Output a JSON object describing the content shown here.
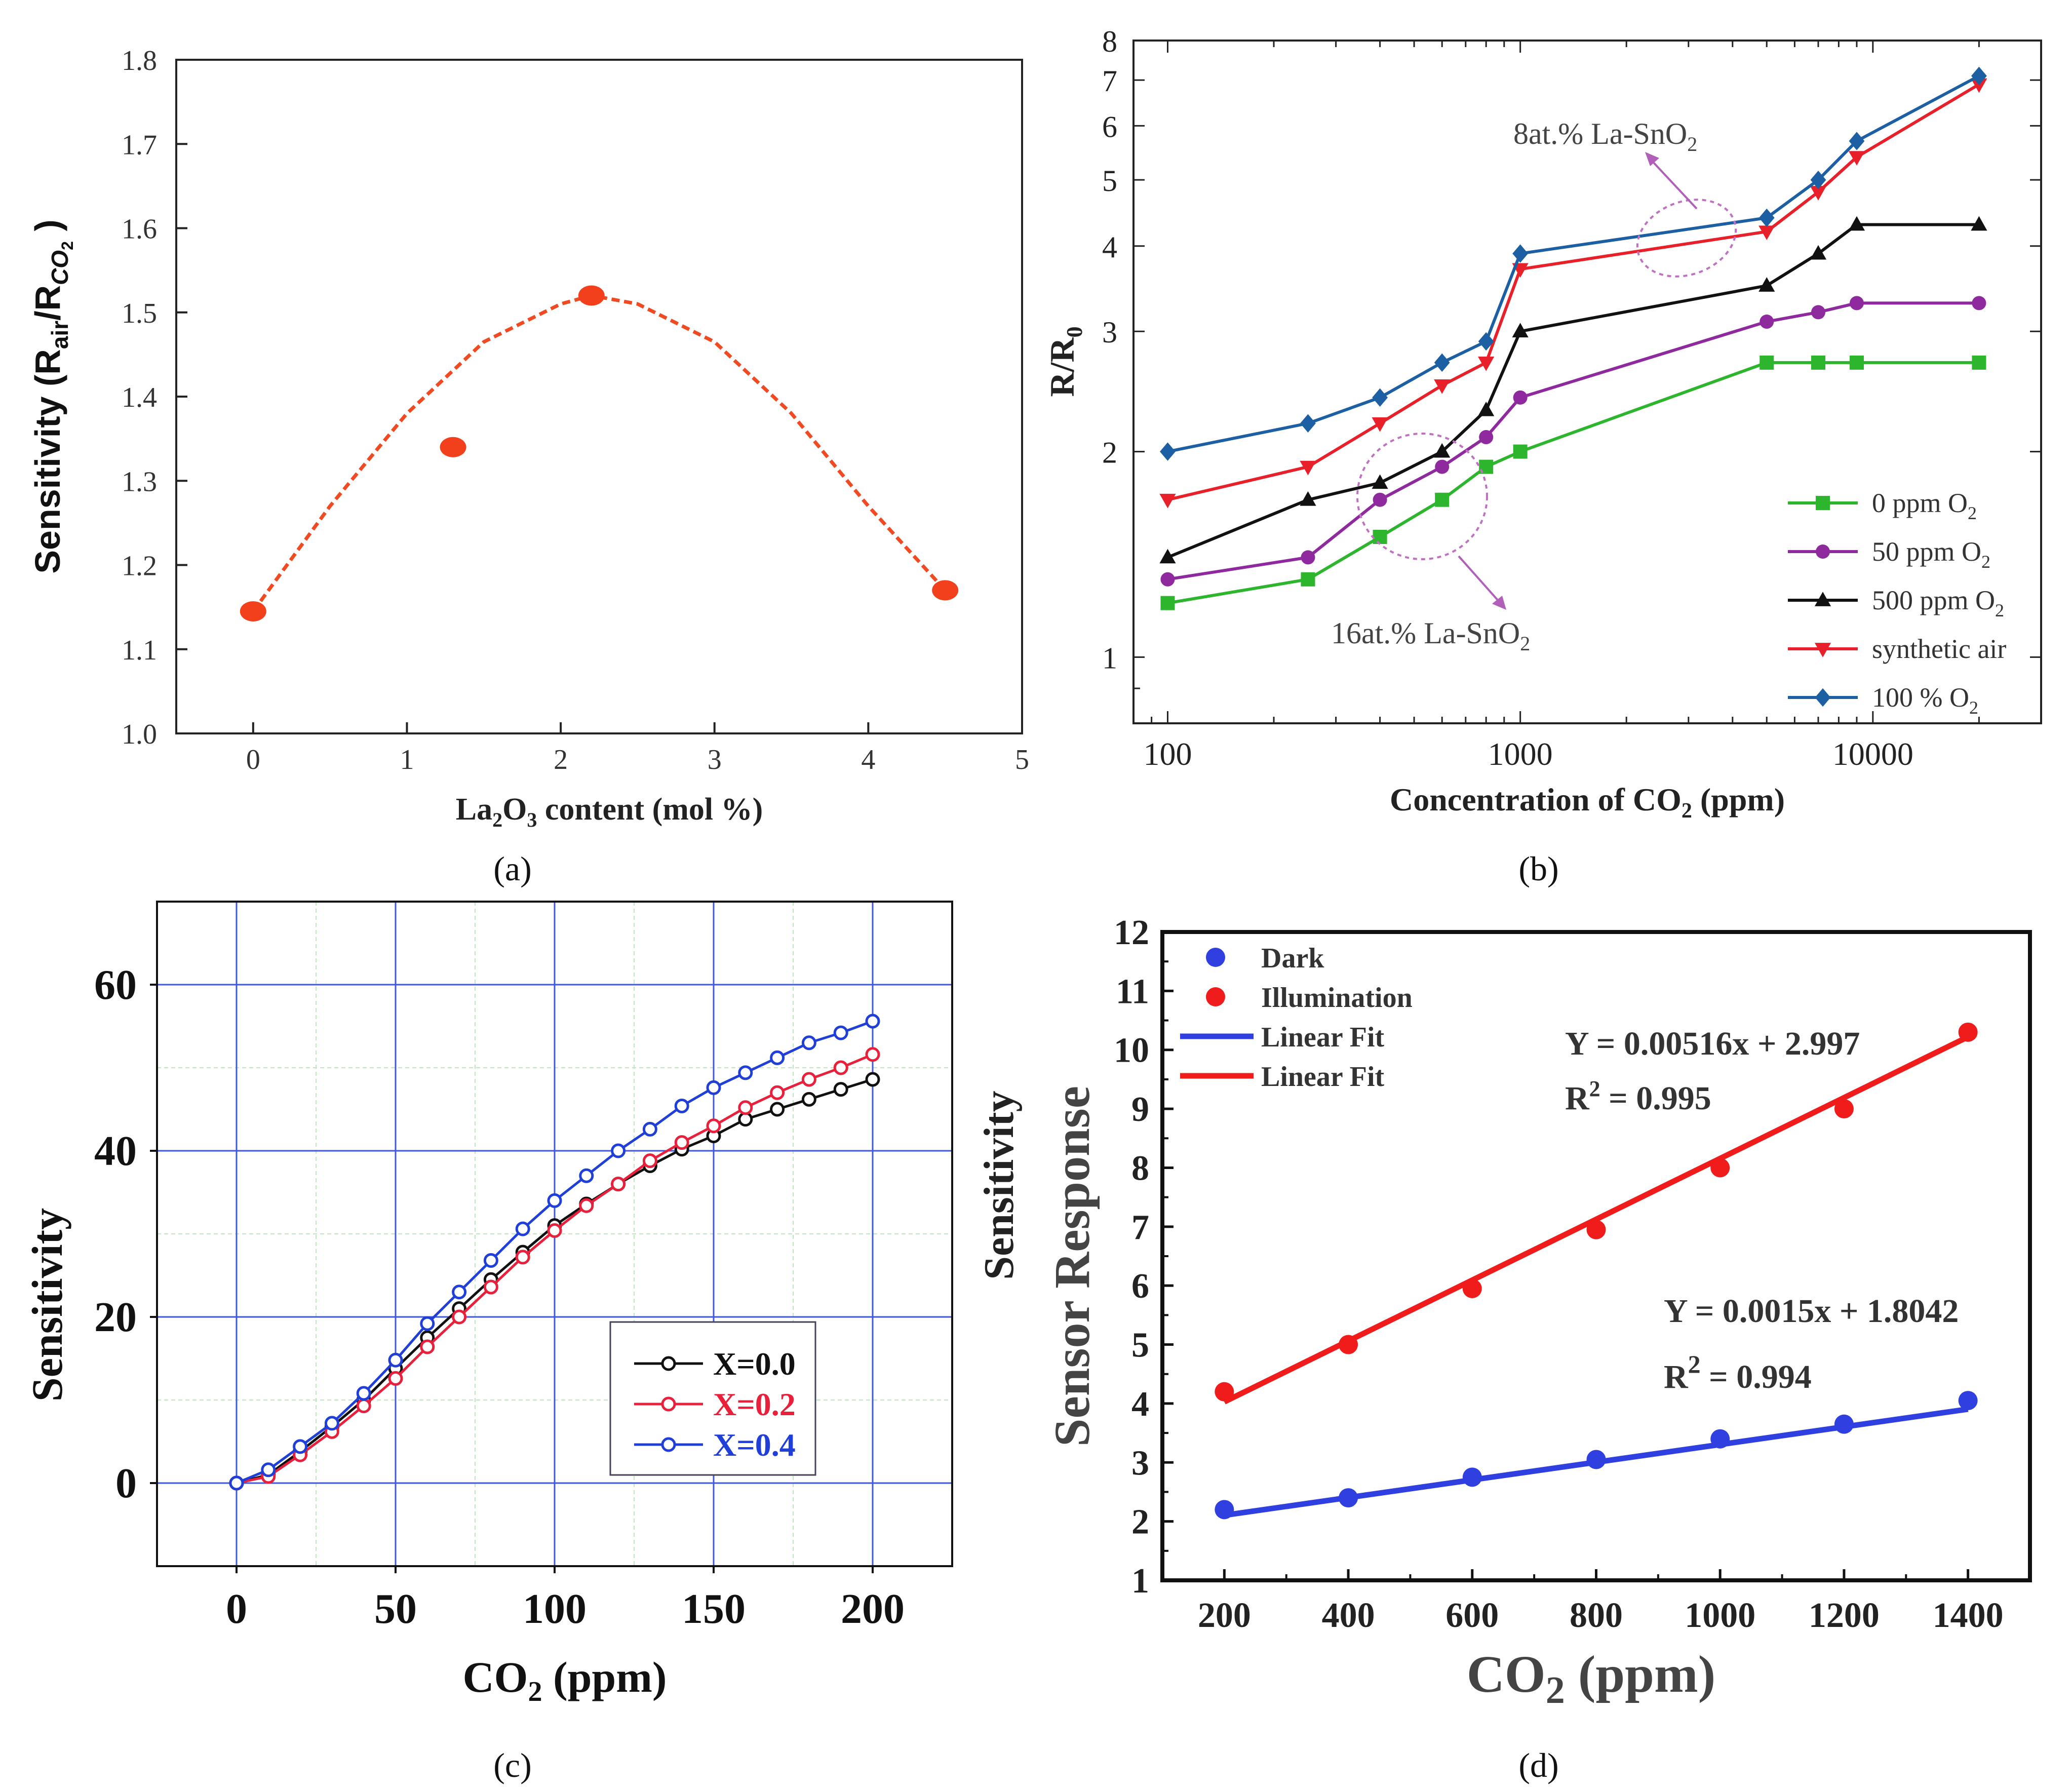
{
  "captions": {
    "a": "(a)",
    "b": "(b)",
    "c": "(c)",
    "d": "(d)"
  },
  "chart_data": [
    {
      "panel": "a",
      "type": "scatter",
      "xlabel": "La2O3 content (mol %)",
      "ylabel": "Sensitivity (Rair/RCO2)",
      "xlim": [
        -0.5,
        5
      ],
      "ylim": [
        1.0,
        1.8
      ],
      "xticks": [
        0,
        1,
        2,
        3,
        4,
        5
      ],
      "yticks": [
        1.0,
        1.1,
        1.2,
        1.3,
        1.4,
        1.5,
        1.6,
        1.7,
        1.8
      ],
      "xtick_labels": [
        "0",
        "1",
        "2",
        "3",
        "4",
        "5"
      ],
      "ytick_labels": [
        "1.0",
        "1.1",
        "1.2",
        "1.3",
        "1.4",
        "1.5",
        "1.6",
        "1.7",
        "1.8"
      ],
      "points": [
        {
          "x": 0,
          "y": 1.145
        },
        {
          "x": 1.3,
          "y": 1.34
        },
        {
          "x": 2.2,
          "y": 1.52
        },
        {
          "x": 4.5,
          "y": 1.17
        }
      ],
      "fit_curve": [
        {
          "x": 0,
          "y": 1.145
        },
        {
          "x": 0.5,
          "y": 1.27
        },
        {
          "x": 1.0,
          "y": 1.38
        },
        {
          "x": 1.5,
          "y": 1.465
        },
        {
          "x": 2.0,
          "y": 1.51
        },
        {
          "x": 2.2,
          "y": 1.52
        },
        {
          "x": 2.5,
          "y": 1.51
        },
        {
          "x": 3.0,
          "y": 1.465
        },
        {
          "x": 3.5,
          "y": 1.38
        },
        {
          "x": 4.0,
          "y": 1.27
        },
        {
          "x": 4.5,
          "y": 1.17
        }
      ],
      "colors": {
        "points": "#f2401d",
        "fit": "#f04a22"
      }
    },
    {
      "panel": "b",
      "type": "line",
      "xscale": "log",
      "yscale": "log",
      "xlabel": "Concentration of CO2 (ppm)",
      "ylabel": "R/R0",
      "xlim": [
        80,
        30000
      ],
      "ylim": [
        0.8,
        8
      ],
      "xtick_labels": [
        "100",
        "1000",
        "10000"
      ],
      "xticks": [
        100,
        1000,
        10000
      ],
      "yticks": [
        1,
        2,
        3,
        4,
        5,
        6,
        7,
        8
      ],
      "ytick_labels": [
        "1",
        "2",
        "3",
        "4",
        "5",
        "6",
        "7",
        "8"
      ],
      "x": [
        100,
        250,
        400,
        600,
        800,
        1000,
        5000,
        7000,
        9000,
        20000
      ],
      "series": [
        {
          "name": "0 ppm O2",
          "marker": "square",
          "color": "#2db52d",
          "values": [
            1.2,
            1.3,
            1.5,
            1.7,
            1.9,
            2.0,
            2.7,
            2.7,
            2.7,
            2.7
          ]
        },
        {
          "name": "50 ppm O2",
          "marker": "circle",
          "color": "#8e2a9e",
          "values": [
            1.3,
            1.4,
            1.7,
            1.9,
            2.1,
            2.4,
            3.1,
            3.2,
            3.3,
            3.3
          ]
        },
        {
          "name": "500 ppm O2",
          "marker": "triangle-up",
          "color": "#111111",
          "values": [
            1.4,
            1.7,
            1.8,
            2.0,
            2.3,
            3.0,
            3.5,
            3.9,
            4.3,
            4.3
          ]
        },
        {
          "name": "synthetic air",
          "marker": "triangle-down",
          "color": "#e8202a",
          "values": [
            1.7,
            1.9,
            2.2,
            2.5,
            2.7,
            3.7,
            4.2,
            4.8,
            5.4,
            6.9
          ]
        },
        {
          "name": "100 % O2",
          "marker": "diamond",
          "color": "#1c5fa3",
          "values": [
            2.0,
            2.2,
            2.4,
            2.7,
            2.9,
            3.9,
            4.4,
            5.0,
            5.7,
            7.1
          ]
        }
      ],
      "legend_labels": [
        "0 ppm O",
        "50 ppm O",
        "500 ppm O",
        "synthetic air",
        "100 % O"
      ],
      "annotations": [
        {
          "text": "8at.% La-SnO2",
          "label": "8at.% La-SnO",
          "sub": "2"
        },
        {
          "text": "16at.% La-SnO2",
          "label": "16at.% La-SnO",
          "sub": "2"
        }
      ],
      "legend_position": "bottom-right"
    },
    {
      "panel": "c",
      "type": "line",
      "xlabel": "CO2 (ppm)",
      "ylabel": "Sensitivity",
      "xlim": [
        -25,
        225
      ],
      "ylim": [
        -10,
        70
      ],
      "xticks": [
        0,
        50,
        100,
        150,
        200
      ],
      "yticks": [
        0,
        20,
        40,
        60
      ],
      "xtick_labels": [
        "0",
        "50",
        "100",
        "150",
        "200"
      ],
      "ytick_labels": [
        "0",
        "20",
        "40",
        "60"
      ],
      "grid": true,
      "x": [
        0,
        10,
        20,
        30,
        40,
        50,
        60,
        70,
        80,
        90,
        100,
        110,
        120,
        130,
        140,
        150,
        160,
        170,
        180,
        190,
        200
      ],
      "series": [
        {
          "name": "X=0.0",
          "color": "#111111",
          "values": [
            0,
            1.0,
            3.8,
            6.8,
            10.0,
            13.8,
            17.5,
            21.0,
            24.5,
            27.8,
            31.0,
            33.6,
            36.0,
            38.2,
            40.2,
            41.8,
            43.8,
            45.0,
            46.2,
            47.4,
            48.6
          ]
        },
        {
          "name": "X=0.2",
          "color": "#e8203c",
          "values": [
            0,
            0.8,
            3.4,
            6.2,
            9.3,
            12.6,
            16.4,
            20.0,
            23.6,
            27.2,
            30.4,
            33.4,
            36.0,
            38.8,
            41.0,
            43.0,
            45.2,
            47.0,
            48.6,
            50.0,
            51.6
          ]
        },
        {
          "name": "X=0.4",
          "color": "#1f3fd8",
          "values": [
            0,
            1.6,
            4.4,
            7.2,
            10.8,
            14.8,
            19.2,
            23.0,
            26.8,
            30.6,
            34.0,
            37.0,
            40.0,
            42.6,
            45.4,
            47.6,
            49.4,
            51.2,
            53.0,
            54.2,
            55.6
          ]
        }
      ],
      "legend_position": "bottom-right"
    },
    {
      "panel": "d",
      "type": "scatter",
      "xlabel": "CO2 (ppm)",
      "ylabel": "Sensor Response",
      "ylabel_outer": "Sensitivity",
      "xlim": [
        100,
        1500
      ],
      "ylim": [
        1,
        12
      ],
      "xticks": [
        200,
        400,
        600,
        800,
        1000,
        1200,
        1400
      ],
      "yticks": [
        1,
        2,
        3,
        4,
        5,
        6,
        7,
        8,
        9,
        10,
        11,
        12
      ],
      "xtick_labels": [
        "200",
        "400",
        "600",
        "800",
        "1000",
        "1200",
        "1400"
      ],
      "ytick_labels": [
        "1",
        "2",
        "3",
        "4",
        "5",
        "6",
        "7",
        "8",
        "9",
        "10",
        "11",
        "12"
      ],
      "x": [
        200,
        400,
        600,
        800,
        1000,
        1200,
        1400
      ],
      "series": [
        {
          "name": "Dark",
          "color": "#2f3fe0",
          "values": [
            2.2,
            2.4,
            2.75,
            3.05,
            3.4,
            3.65,
            4.05
          ],
          "fit": {
            "slope": 0.0015,
            "intercept": 1.8042
          }
        },
        {
          "name": "Illumination",
          "color": "#f01c1c",
          "values": [
            4.2,
            5.0,
            5.95,
            6.95,
            8.0,
            9.0,
            10.3
          ],
          "fit": {
            "slope": 0.00516,
            "intercept": 2.997
          }
        }
      ],
      "legend_labels": [
        "Dark",
        "Illumination",
        "Linear Fit",
        "Linear Fit"
      ],
      "annotations": [
        {
          "text": "Y = 0.00516x + 2.997"
        },
        {
          "text": "R2 = 0.995",
          "label": "R",
          "sup": "2",
          "rest": " = 0.995"
        },
        {
          "text": "Y = 0.0015x + 1.8042"
        },
        {
          "text": "R2 = 0.994",
          "label": "R",
          "sup": "2",
          "rest": " = 0.994"
        }
      ],
      "legend_position": "top-left"
    }
  ]
}
